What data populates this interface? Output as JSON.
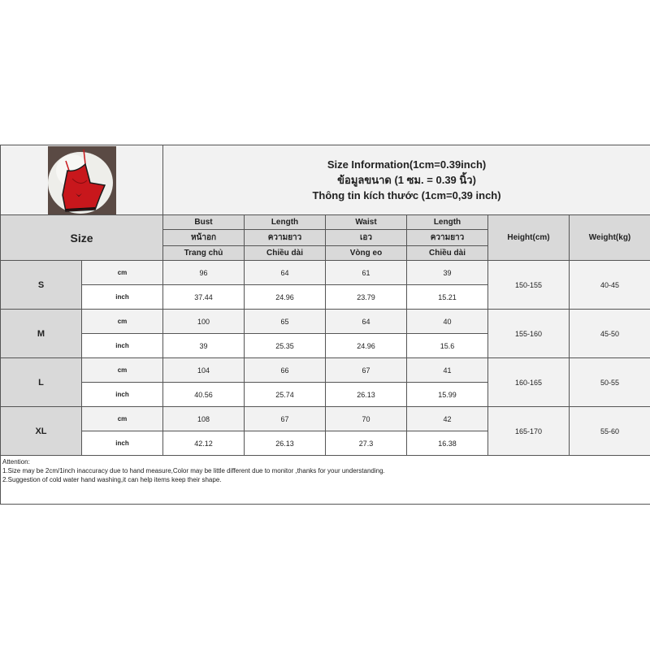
{
  "title": {
    "en": "Size Information(1cm=0.39inch)",
    "th": "ข้อมูลขนาด (1 ซม. = 0.39 นิ้ว)",
    "vi": "Thông tin kích thước (1cm=0,39 inch)"
  },
  "product_image": {
    "description_icon": "red-satin-camisole-set-photo",
    "accent": "#c8171c"
  },
  "header": {
    "size": "Size",
    "columns": [
      {
        "en": "Bust",
        "th": "หน้าอก",
        "vi": "Trang chủ"
      },
      {
        "en": "Length",
        "th": "ความยาว",
        "vi": "Chiều dài"
      },
      {
        "en": "Waist",
        "th": "เอว",
        "vi": "Vòng eo"
      },
      {
        "en": "Length",
        "th": "ความยาว",
        "vi": "Chiều dài"
      }
    ],
    "height": "Height(cm)",
    "weight": "Weight(kg)"
  },
  "units": {
    "cm": "cm",
    "inch": "inch"
  },
  "sizes": [
    {
      "label": "S",
      "cm": [
        "96",
        "64",
        "61",
        "39"
      ],
      "inch": [
        "37.44",
        "24.96",
        "23.79",
        "15.21"
      ],
      "height": "150-155",
      "weight": "40-45"
    },
    {
      "label": "M",
      "cm": [
        "100",
        "65",
        "64",
        "40"
      ],
      "inch": [
        "39",
        "25.35",
        "24.96",
        "15.6"
      ],
      "height": "155-160",
      "weight": "45-50"
    },
    {
      "label": "L",
      "cm": [
        "104",
        "66",
        "67",
        "41"
      ],
      "inch": [
        "40.56",
        "25.74",
        "26.13",
        "15.99"
      ],
      "height": "160-165",
      "weight": "50-55"
    },
    {
      "label": "XL",
      "cm": [
        "108",
        "67",
        "70",
        "42"
      ],
      "inch": [
        "42.12",
        "26.13",
        "27.3",
        "16.38"
      ],
      "height": "165-170",
      "weight": "55-60"
    }
  ],
  "notes": {
    "heading": "Attention:",
    "lines": [
      "1.Size may be 2cm/1inch inaccuracy due to hand measure,Color may be little different due to monitor ,thanks for your understanding.",
      "2.Suggestion of cold water hand washing,it can help items keep their shape."
    ]
  },
  "colors": {
    "header_bg": "#d9d9d9",
    "cm_row_bg": "#f2f2f2",
    "inch_row_bg": "#ffffff",
    "border": "#555555"
  }
}
